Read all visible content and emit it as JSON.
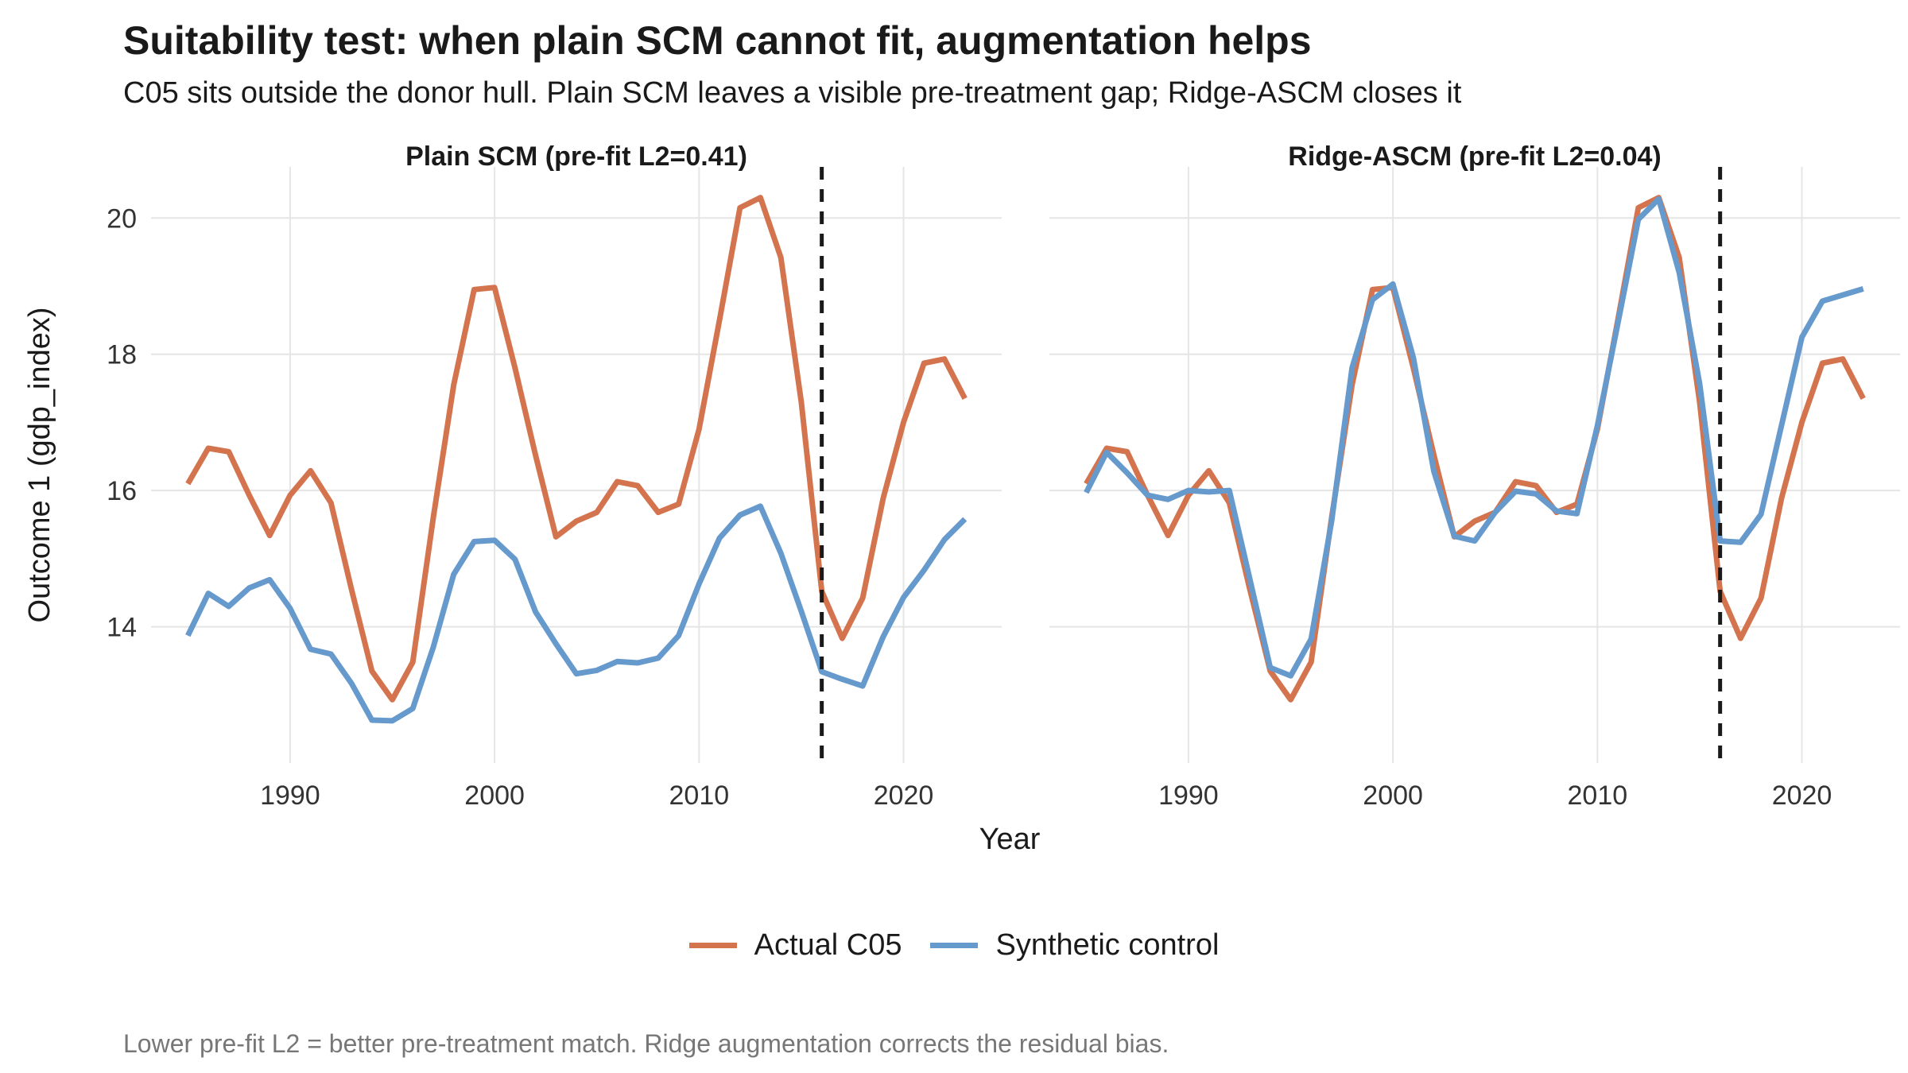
{
  "title": "Suitability test: when plain SCM cannot fit, augmentation helps",
  "subtitle": "C05 sits outside the donor hull. Plain SCM leaves a visible pre-treatment gap; Ridge-ASCM closes it",
  "caption": "Lower pre-fit L2 = better pre-treatment match. Ridge augmentation corrects the residual bias.",
  "legend": {
    "actual_label": "Actual C05",
    "synthetic_label": "Synthetic control"
  },
  "colors": {
    "actual": "#D4744F",
    "synthetic": "#6699CC",
    "grid": "#E5E5E5",
    "treatment_line": "#1a1a1a"
  },
  "chart_data": {
    "type": "line",
    "xlabel": "Year",
    "ylabel": "Outcome 1 (gdp_index)",
    "xlim": [
      1983.2,
      1984.8
    ],
    "x_ticks": [
      1990,
      2000,
      2010,
      2020
    ],
    "y_ticks": [
      14,
      16,
      18,
      20
    ],
    "ylim": [
      12.0,
      20.75
    ],
    "treatment_year": 2016,
    "legend_position": "bottom",
    "panels": [
      {
        "title": "Plain SCM (pre-fit L2=0.41)",
        "x": [
          1985,
          1986,
          1987,
          1988,
          1989,
          1990,
          1991,
          1992,
          1993,
          1994,
          1995,
          1996,
          1997,
          1998,
          1999,
          2000,
          2001,
          2002,
          2003,
          2004,
          2005,
          2006,
          2007,
          2008,
          2009,
          2010,
          2011,
          2012,
          2013,
          2014,
          2015,
          2016,
          2017,
          2018,
          2019,
          2020,
          2021,
          2022,
          2023
        ],
        "series": [
          {
            "name": "Actual C05",
            "values": [
              16.1,
              16.62,
              16.57,
              15.93,
              15.34,
              15.93,
              16.29,
              15.82,
              14.55,
              13.35,
              12.93,
              13.48,
              15.6,
              17.55,
              18.95,
              18.98,
              17.8,
              16.52,
              15.32,
              15.55,
              15.68,
              16.13,
              16.07,
              15.68,
              15.8,
              16.9,
              18.5,
              20.15,
              20.3,
              19.42,
              17.3,
              14.52,
              13.83,
              14.42,
              15.88,
              17.0,
              17.87,
              17.93,
              17.35
            ]
          },
          {
            "name": "Synthetic control",
            "values": [
              13.87,
              14.49,
              14.3,
              14.57,
              14.69,
              14.27,
              13.67,
              13.6,
              13.17,
              12.63,
              12.62,
              12.8,
              13.7,
              14.77,
              15.25,
              15.27,
              14.99,
              14.22,
              13.75,
              13.31,
              13.36,
              13.49,
              13.47,
              13.54,
              13.87,
              14.63,
              15.3,
              15.64,
              15.77,
              15.08,
              14.23,
              13.34,
              13.23,
              13.13,
              13.85,
              14.43,
              14.83,
              15.28,
              15.58
            ]
          }
        ]
      },
      {
        "title": "Ridge-ASCM (pre-fit L2=0.04)",
        "x": [
          1985,
          1986,
          1987,
          1988,
          1989,
          1990,
          1991,
          1992,
          1993,
          1994,
          1995,
          1996,
          1997,
          1998,
          1999,
          2000,
          2001,
          2002,
          2003,
          2004,
          2005,
          2006,
          2007,
          2008,
          2009,
          2010,
          2011,
          2012,
          2013,
          2014,
          2015,
          2016,
          2017,
          2018,
          2019,
          2020,
          2021,
          2022,
          2023
        ],
        "series": [
          {
            "name": "Actual C05",
            "values": [
              16.1,
              16.62,
              16.57,
              15.93,
              15.34,
              15.93,
              16.29,
              15.82,
              14.55,
              13.35,
              12.93,
              13.48,
              15.6,
              17.55,
              18.95,
              18.98,
              17.8,
              16.52,
              15.32,
              15.55,
              15.68,
              16.13,
              16.07,
              15.68,
              15.8,
              16.9,
              18.5,
              20.15,
              20.3,
              19.42,
              17.3,
              14.52,
              13.83,
              14.42,
              15.88,
              17.0,
              17.87,
              17.93,
              17.35
            ]
          },
          {
            "name": "Synthetic control",
            "values": [
              15.97,
              16.56,
              16.26,
              15.93,
              15.87,
              16.0,
              15.98,
              16.0,
              14.7,
              13.4,
              13.28,
              13.82,
              15.55,
              17.8,
              18.8,
              19.03,
              17.95,
              16.28,
              15.33,
              15.26,
              15.68,
              15.99,
              15.95,
              15.7,
              15.66,
              16.95,
              18.45,
              19.98,
              20.28,
              19.2,
              17.57,
              15.26,
              15.24,
              15.65,
              16.95,
              18.25,
              18.78,
              18.87,
              18.96
            ]
          }
        ]
      }
    ]
  }
}
